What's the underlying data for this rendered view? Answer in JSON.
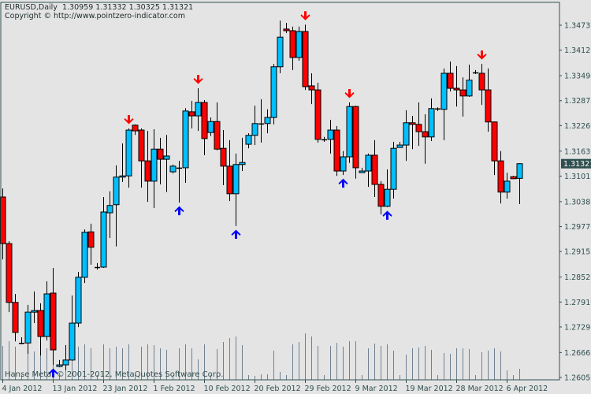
{
  "header": {
    "symbol_period": "EURUSD,Daily",
    "ohlc": "1.30959 1.31332 1.30325 1.31321",
    "copyright": "Copyright © http://www.pointzero-indicator.com"
  },
  "footer_copyright": "Hanse Meta, © 2001-2012, MetaQuotes Software Corp.",
  "colors": {
    "background": "#e4e4e4",
    "bull_candle": "#00bfff",
    "bear_candle": "#ff0000",
    "candle_outline": "#000000",
    "volume": "#708090",
    "axis": "#2f4f4f",
    "arrow_up": "#0000ff",
    "arrow_down": "#ff0000",
    "price_label_bg": "#2f4f4f"
  },
  "chart_data": {
    "type": "candlestick",
    "symbol": "EURUSD",
    "timeframe": "Daily",
    "ylim": [
      1.2605,
      1.34735
    ],
    "grid": false,
    "y_ticks": [
      "1.34735",
      "1.34120",
      "1.33490",
      "1.32875",
      "1.32260",
      "1.31630",
      "1.31015",
      "1.30385",
      "1.29770",
      "1.29155",
      "1.28525",
      "1.27910",
      "1.27295",
      "1.26665",
      "1.26050"
    ],
    "current_price": "1.31321",
    "x_ticks": [
      {
        "bar": 0,
        "label": "4 Jan 2012"
      },
      {
        "bar": 8,
        "label": "13 Jan 2012"
      },
      {
        "bar": 16,
        "label": "23 Jan 2012"
      },
      {
        "bar": 24,
        "label": "1 Feb 2012"
      },
      {
        "bar": 32,
        "label": "10 Feb 2012"
      },
      {
        "bar": 40,
        "label": "20 Feb 2012"
      },
      {
        "bar": 48,
        "label": "29 Feb 2012"
      },
      {
        "bar": 56,
        "label": "9 Mar 2012"
      },
      {
        "bar": 64,
        "label": "19 Mar 2012"
      },
      {
        "bar": 72,
        "label": "28 Mar 2012"
      },
      {
        "bar": 80,
        "label": "6 Apr 2012"
      }
    ],
    "candles_ohlc": [
      [
        1.305,
        1.3071,
        1.2896,
        1.2935
      ],
      [
        1.2935,
        1.2941,
        1.2766,
        1.279
      ],
      [
        1.279,
        1.2811,
        1.2694,
        1.2716
      ],
      [
        1.269,
        1.2704,
        1.2687,
        1.269
      ],
      [
        1.269,
        1.2784,
        1.2663,
        1.2766
      ],
      [
        1.2766,
        1.2817,
        1.2739,
        1.277
      ],
      [
        1.277,
        1.2788,
        1.2659,
        1.2706
      ],
      [
        1.2706,
        1.2842,
        1.2696,
        1.2811
      ],
      [
        1.2813,
        1.2875,
        1.2636,
        1.2673
      ],
      [
        1.2632,
        1.2648,
        1.263,
        1.2636
      ],
      [
        1.2636,
        1.2685,
        1.2623,
        1.2648
      ],
      [
        1.2648,
        1.2807,
        1.2646,
        1.2739
      ],
      [
        1.2739,
        1.2865,
        1.2729,
        1.2852
      ],
      [
        1.2852,
        1.297,
        1.2838,
        1.2963
      ],
      [
        1.2964,
        1.2984,
        1.2883,
        1.2926
      ],
      [
        1.2877,
        1.2887,
        1.2871,
        1.2877
      ],
      [
        1.2877,
        1.305,
        1.2875,
        1.3013
      ],
      [
        1.3011,
        1.3064,
        1.2949,
        1.3029
      ],
      [
        1.3031,
        1.3128,
        1.2928,
        1.3099
      ],
      [
        1.3099,
        1.3182,
        1.3087,
        1.3102
      ],
      [
        1.3102,
        1.3219,
        1.3073,
        1.3215
      ],
      [
        1.3227,
        1.3229,
        1.3203,
        1.3213
      ],
      [
        1.3215,
        1.3219,
        1.3073,
        1.3139
      ],
      [
        1.3139,
        1.3213,
        1.3038,
        1.3089
      ],
      [
        1.3089,
        1.3217,
        1.3023,
        1.3168
      ],
      [
        1.3168,
        1.3196,
        1.3081,
        1.3143
      ],
      [
        1.3143,
        1.3203,
        1.3062,
        1.3151
      ],
      [
        1.3112,
        1.313,
        1.3108,
        1.3126
      ],
      [
        1.3122,
        1.3139,
        1.3036,
        1.3122
      ],
      [
        1.3122,
        1.3269,
        1.3085,
        1.3262
      ],
      [
        1.326,
        1.3287,
        1.3219,
        1.325
      ],
      [
        1.325,
        1.3318,
        1.3213,
        1.3283
      ],
      [
        1.3283,
        1.3289,
        1.3153,
        1.3194
      ],
      [
        1.3209,
        1.3246,
        1.32,
        1.3236
      ],
      [
        1.3236,
        1.3283,
        1.3165,
        1.3168
      ],
      [
        1.317,
        1.3215,
        1.3079,
        1.3126
      ],
      [
        1.3126,
        1.319,
        1.304,
        1.3058
      ],
      [
        1.3058,
        1.3157,
        1.2978,
        1.313
      ],
      [
        1.313,
        1.3196,
        1.3114,
        1.3135
      ],
      [
        1.318,
        1.3207,
        1.317,
        1.3202
      ],
      [
        1.3202,
        1.3275,
        1.3178,
        1.3231
      ],
      [
        1.3231,
        1.3291,
        1.3184,
        1.3231
      ],
      [
        1.3231,
        1.3266,
        1.3207,
        1.3246
      ],
      [
        1.3246,
        1.3378,
        1.3229,
        1.3371
      ],
      [
        1.3371,
        1.3485,
        1.3355,
        1.3444
      ],
      [
        1.3464,
        1.3479,
        1.3454,
        1.346
      ],
      [
        1.346,
        1.347,
        1.3363,
        1.3394
      ],
      [
        1.3394,
        1.347,
        1.3386,
        1.3458
      ],
      [
        1.3458,
        1.3475,
        1.3314,
        1.3322
      ],
      [
        1.3324,
        1.3355,
        1.3279,
        1.3314
      ],
      [
        1.3314,
        1.3332,
        1.3184,
        1.3192
      ],
      [
        1.319,
        1.3198,
        1.3186,
        1.3192
      ],
      [
        1.3192,
        1.324,
        1.3157,
        1.3215
      ],
      [
        1.3215,
        1.3225,
        1.3102,
        1.3114
      ],
      [
        1.3114,
        1.3163,
        1.3104,
        1.3149
      ],
      [
        1.3149,
        1.3283,
        1.3134,
        1.3273
      ],
      [
        1.3273,
        1.3275,
        1.3095,
        1.3122
      ],
      [
        1.311,
        1.3122,
        1.311,
        1.3114
      ],
      [
        1.3114,
        1.3157,
        1.3075,
        1.3153
      ],
      [
        1.3153,
        1.319,
        1.305,
        1.3081
      ],
      [
        1.3081,
        1.3089,
        1.3007,
        1.3027
      ],
      [
        1.3027,
        1.3118,
        1.3025,
        1.3069
      ],
      [
        1.3069,
        1.3186,
        1.3046,
        1.317
      ],
      [
        1.3172,
        1.3186,
        1.3172,
        1.3178
      ],
      [
        1.3178,
        1.3264,
        1.3139,
        1.3233
      ],
      [
        1.3233,
        1.325,
        1.3168,
        1.3229
      ],
      [
        1.3229,
        1.3283,
        1.3176,
        1.3211
      ],
      [
        1.3211,
        1.3254,
        1.3132,
        1.3198
      ],
      [
        1.3198,
        1.3293,
        1.3188,
        1.3268
      ],
      [
        1.3268,
        1.3271,
        1.3262,
        1.3268
      ],
      [
        1.3266,
        1.3367,
        1.319,
        1.3355
      ],
      [
        1.3355,
        1.3384,
        1.331,
        1.3318
      ],
      [
        1.3318,
        1.3373,
        1.3273,
        1.3314
      ],
      [
        1.3314,
        1.3345,
        1.3248,
        1.3299
      ],
      [
        1.3299,
        1.3376,
        1.3297,
        1.3338
      ],
      [
        1.3357,
        1.3363,
        1.3353,
        1.3357
      ],
      [
        1.3355,
        1.3378,
        1.3277,
        1.3314
      ],
      [
        1.3314,
        1.3367,
        1.3211,
        1.3235
      ],
      [
        1.3235,
        1.3236,
        1.3104,
        1.3139
      ],
      [
        1.3139,
        1.3163,
        1.3034,
        1.3062
      ],
      [
        1.3062,
        1.311,
        1.3046,
        1.3089
      ],
      [
        1.31,
        1.3102,
        1.3095,
        1.3095
      ],
      [
        1.30959,
        1.31332,
        1.30325,
        1.31321
      ]
    ],
    "volume_relative": [
      43,
      49,
      42,
      6,
      40,
      36,
      40,
      40,
      45,
      6,
      35,
      40,
      42,
      45,
      40,
      6,
      45,
      40,
      42,
      40,
      45,
      6,
      42,
      45,
      44,
      40,
      38,
      6,
      40,
      45,
      40,
      26,
      45,
      6,
      39,
      48,
      53,
      55,
      44,
      6,
      5,
      7,
      7,
      37,
      10,
      6,
      45,
      48,
      59,
      55,
      43,
      6,
      43,
      47,
      42,
      49,
      49,
      6,
      40,
      46,
      43,
      45,
      37,
      6,
      32,
      40,
      41,
      43,
      38,
      6,
      34,
      33,
      40,
      40,
      39,
      6,
      35,
      37,
      40,
      36,
      12,
      6,
      14
    ],
    "signals_down_bars": [
      20,
      31,
      48,
      55,
      76
    ],
    "signals_up_bars": [
      8,
      28,
      37,
      54,
      61
    ]
  }
}
